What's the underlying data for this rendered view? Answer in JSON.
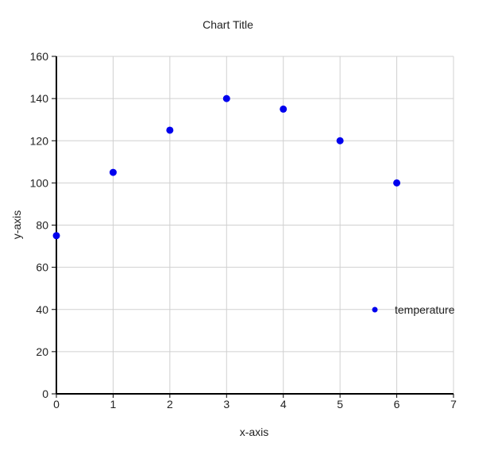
{
  "chart_data": {
    "type": "scatter",
    "title": "Chart Title",
    "xlabel": "x-axis",
    "ylabel": "y-axis",
    "xlim": [
      0,
      7
    ],
    "ylim": [
      0,
      160
    ],
    "xticks": [
      0,
      1,
      2,
      3,
      4,
      5,
      6,
      7
    ],
    "yticks": [
      0,
      20,
      40,
      60,
      80,
      100,
      120,
      140,
      160
    ],
    "grid": true,
    "legend_position": "right",
    "series": [
      {
        "name": "temperature",
        "color": "#0000ee",
        "x": [
          0,
          1,
          2,
          3,
          4,
          5,
          6
        ],
        "y": [
          75,
          105,
          125,
          140,
          135,
          120,
          100
        ]
      }
    ]
  }
}
